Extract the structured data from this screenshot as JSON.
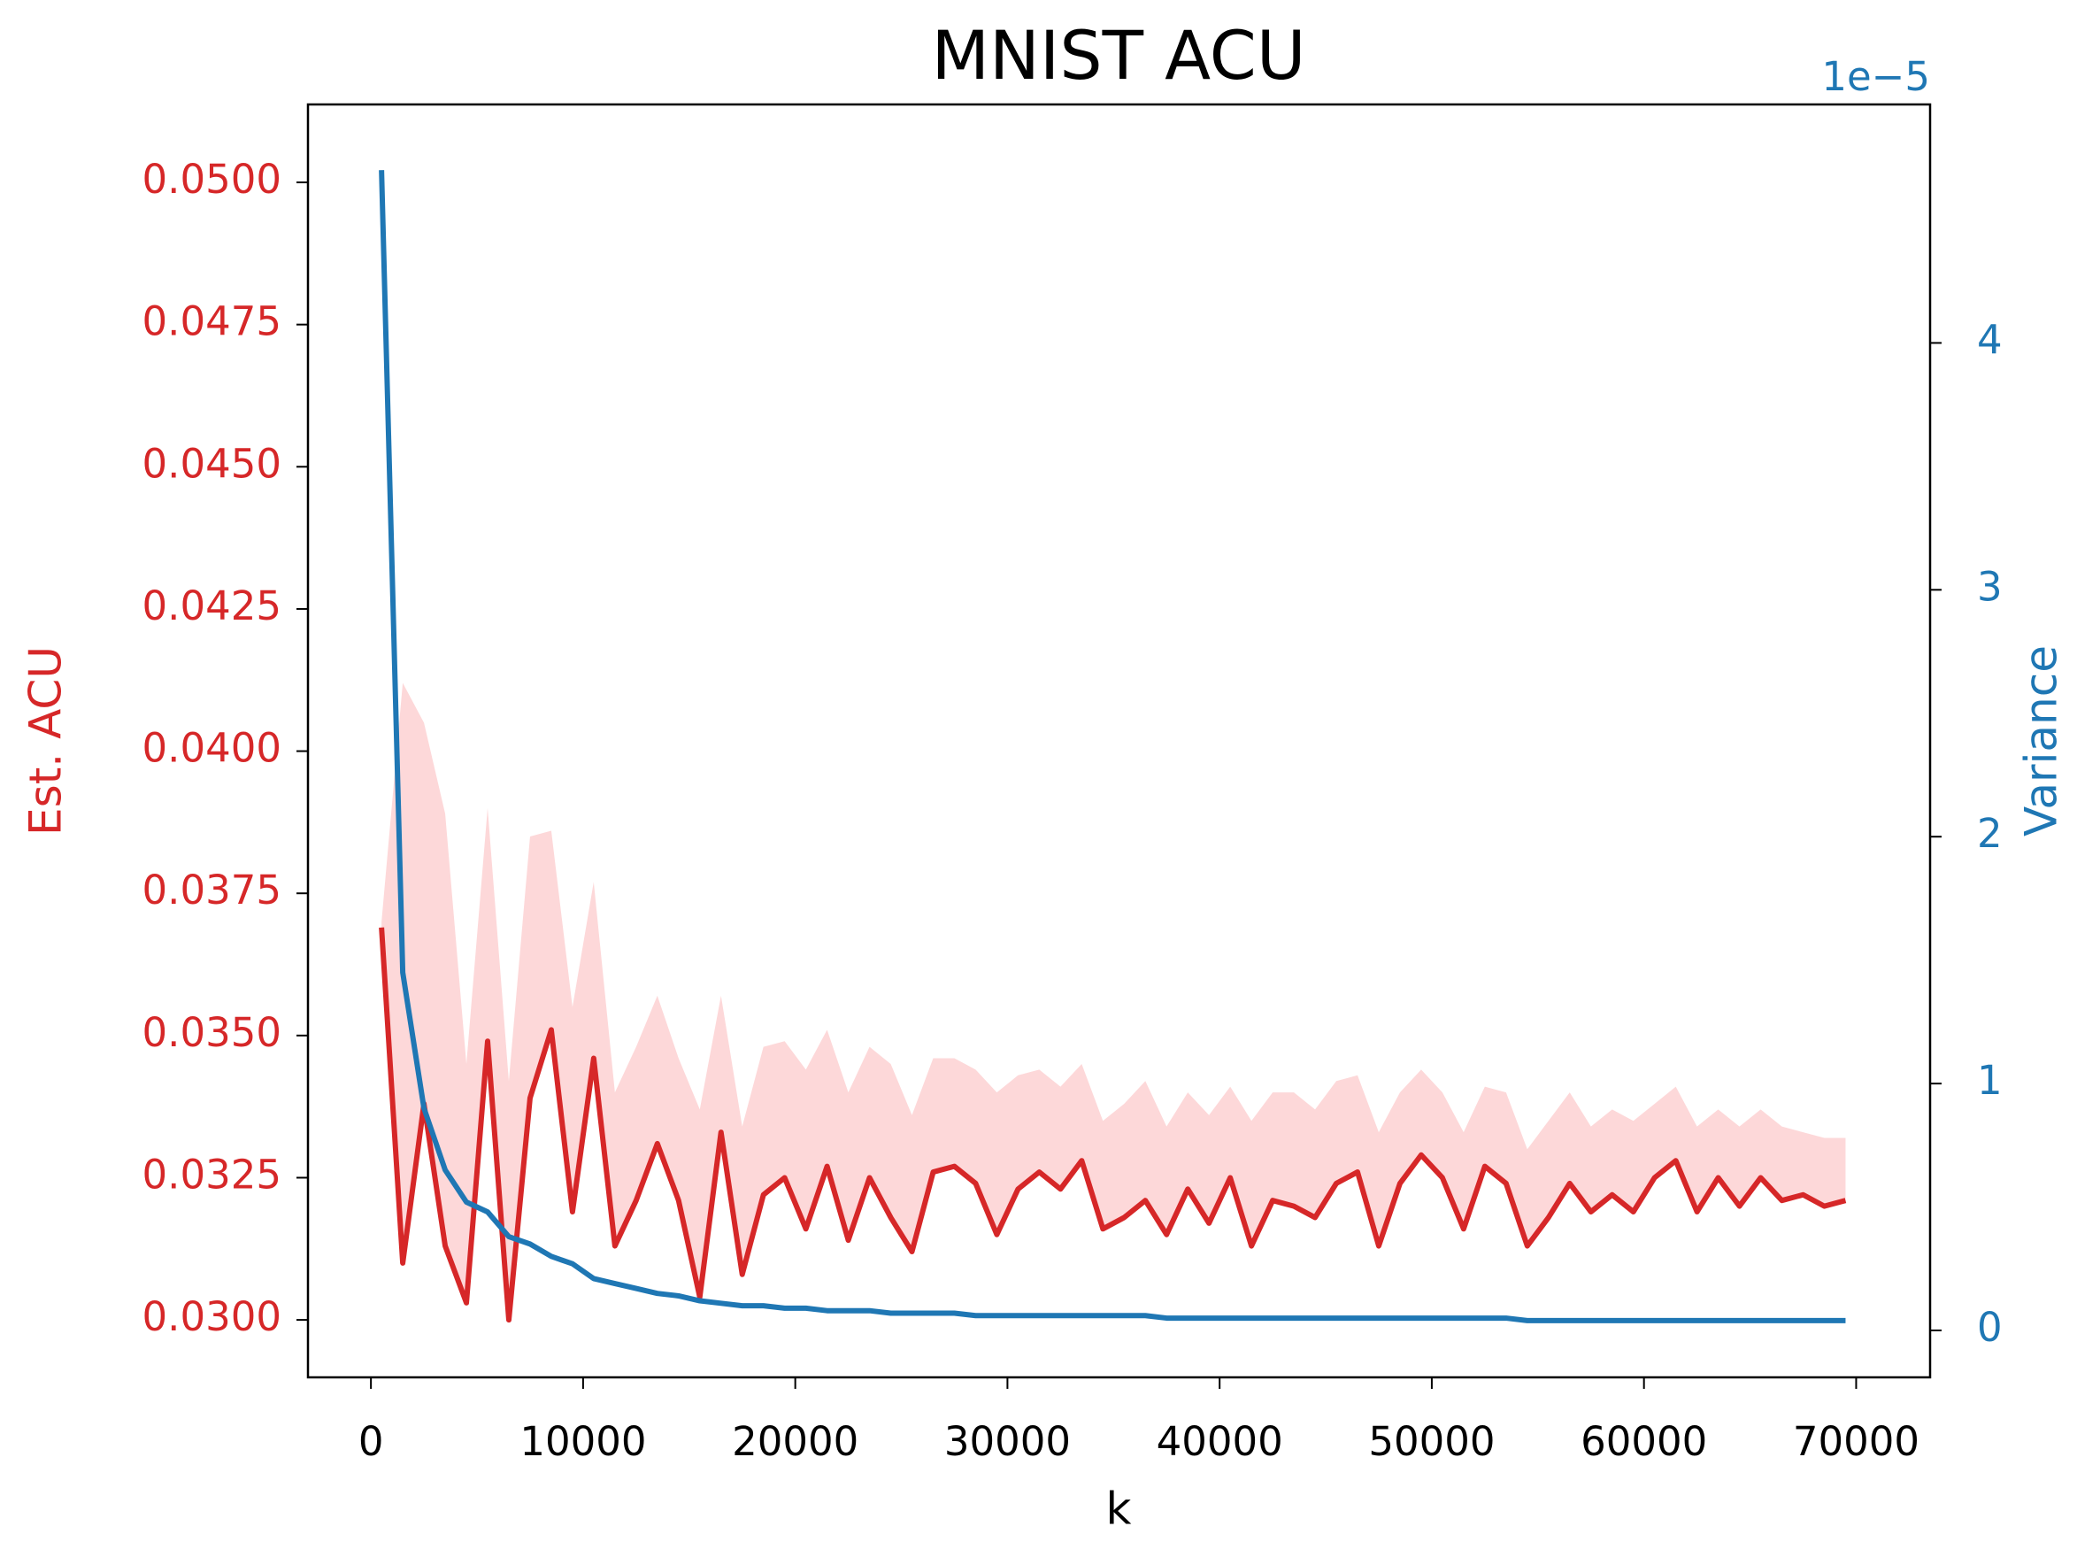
{
  "chart_data": {
    "type": "line",
    "title": "MNIST ACU",
    "xlabel": "k",
    "ylabel": "Est. ACU",
    "y2label": "Variance",
    "y2_offset_label": "1e−5",
    "x": [
      500,
      1500,
      2500,
      3500,
      4500,
      5500,
      6500,
      7500,
      8500,
      9500,
      10500,
      11500,
      12500,
      13500,
      14500,
      15500,
      16500,
      17500,
      18500,
      19500,
      20500,
      21500,
      22500,
      23500,
      24500,
      25500,
      26500,
      27500,
      28500,
      29500,
      30500,
      31500,
      32500,
      33500,
      34500,
      35500,
      36500,
      37500,
      38500,
      39500,
      40500,
      41500,
      42500,
      43500,
      44500,
      45500,
      46500,
      47500,
      48500,
      49500,
      50500,
      51500,
      52500,
      53500,
      54500,
      55500,
      56500,
      57500,
      58500,
      59500,
      60500,
      61500,
      62500,
      63500,
      64500,
      65500,
      66500,
      67500,
      68500,
      69500
    ],
    "series": [
      {
        "name": "Est. ACU",
        "color": "#d62728",
        "band_color": "#fdd8d9",
        "values": [
          0.0369,
          0.031,
          0.0338,
          0.0313,
          0.0303,
          0.0349,
          0.03,
          0.0339,
          0.0351,
          0.0319,
          0.0346,
          0.0313,
          0.0321,
          0.0331,
          0.0321,
          0.0304,
          0.0333,
          0.0308,
          0.0322,
          0.0325,
          0.0316,
          0.0327,
          0.0314,
          0.0325,
          0.0318,
          0.0312,
          0.0326,
          0.0327,
          0.0324,
          0.0315,
          0.0323,
          0.0326,
          0.0323,
          0.0328,
          0.0316,
          0.0318,
          0.0321,
          0.0315,
          0.0323,
          0.0317,
          0.0325,
          0.0313,
          0.0321,
          0.032,
          0.0318,
          0.0324,
          0.0326,
          0.0313,
          0.0324,
          0.0329,
          0.0325,
          0.0316,
          0.0327,
          0.0324,
          0.0313,
          0.0318,
          0.0324,
          0.0319,
          0.0322,
          0.0319,
          0.0325,
          0.0328,
          0.0319,
          0.0325,
          0.032,
          0.0325,
          0.0321,
          0.0322,
          0.032,
          0.0321
        ],
        "upper": [
          0.037,
          0.0412,
          0.0405,
          0.0389,
          0.0345,
          0.039,
          0.0342,
          0.0385,
          0.0386,
          0.0355,
          0.0377,
          0.034,
          0.0348,
          0.0357,
          0.0346,
          0.0337,
          0.0357,
          0.0334,
          0.0348,
          0.0349,
          0.0344,
          0.0351,
          0.034,
          0.0348,
          0.0345,
          0.0336,
          0.0346,
          0.0346,
          0.0344,
          0.034,
          0.0343,
          0.0344,
          0.0341,
          0.0345,
          0.0335,
          0.0338,
          0.0342,
          0.0334,
          0.034,
          0.0336,
          0.0341,
          0.0335,
          0.034,
          0.034,
          0.0337,
          0.0342,
          0.0343,
          0.0333,
          0.034,
          0.0344,
          0.034,
          0.0333,
          0.0341,
          0.034,
          0.033,
          0.0335,
          0.034,
          0.0334,
          0.0337,
          0.0335,
          0.0338,
          0.0341,
          0.0334,
          0.0337,
          0.0334,
          0.0337,
          0.0334,
          0.0333,
          0.0332,
          0.0332
        ]
      },
      {
        "name": "Variance",
        "color": "#1f77b4",
        "axis": "y2",
        "values": [
          4.7,
          1.45,
          0.9,
          0.65,
          0.52,
          0.48,
          0.38,
          0.35,
          0.3,
          0.27,
          0.21,
          0.19,
          0.17,
          0.15,
          0.14,
          0.12,
          0.11,
          0.1,
          0.1,
          0.09,
          0.09,
          0.08,
          0.08,
          0.08,
          0.07,
          0.07,
          0.07,
          0.07,
          0.06,
          0.06,
          0.06,
          0.06,
          0.06,
          0.06,
          0.06,
          0.06,
          0.06,
          0.05,
          0.05,
          0.05,
          0.05,
          0.05,
          0.05,
          0.05,
          0.05,
          0.05,
          0.05,
          0.05,
          0.05,
          0.05,
          0.05,
          0.05,
          0.05,
          0.05,
          0.04,
          0.04,
          0.04,
          0.04,
          0.04,
          0.04,
          0.04,
          0.04,
          0.04,
          0.04,
          0.04,
          0.04,
          0.04,
          0.04,
          0.04,
          0.04
        ]
      }
    ],
    "xlim": [
      -2967,
      73485
    ],
    "xticks": [
      0,
      10000,
      20000,
      30000,
      40000,
      50000,
      60000,
      70000
    ],
    "ylim": [
      0.02899,
      0.05137
    ],
    "yticks": [
      {
        "value": 0.03,
        "label": "0.0300"
      },
      {
        "value": 0.0325,
        "label": "0.0325"
      },
      {
        "value": 0.035,
        "label": "0.0350"
      },
      {
        "value": 0.0375,
        "label": "0.0375"
      },
      {
        "value": 0.04,
        "label": "0.0400"
      },
      {
        "value": 0.0425,
        "label": "0.0425"
      },
      {
        "value": 0.045,
        "label": "0.0450"
      },
      {
        "value": 0.0475,
        "label": "0.0475"
      },
      {
        "value": 0.05,
        "label": "0.0500"
      }
    ],
    "y2lim": [
      -0.19,
      4.966
    ],
    "y2ticks": [
      0,
      1,
      2,
      3,
      4
    ],
    "grid": false
  }
}
